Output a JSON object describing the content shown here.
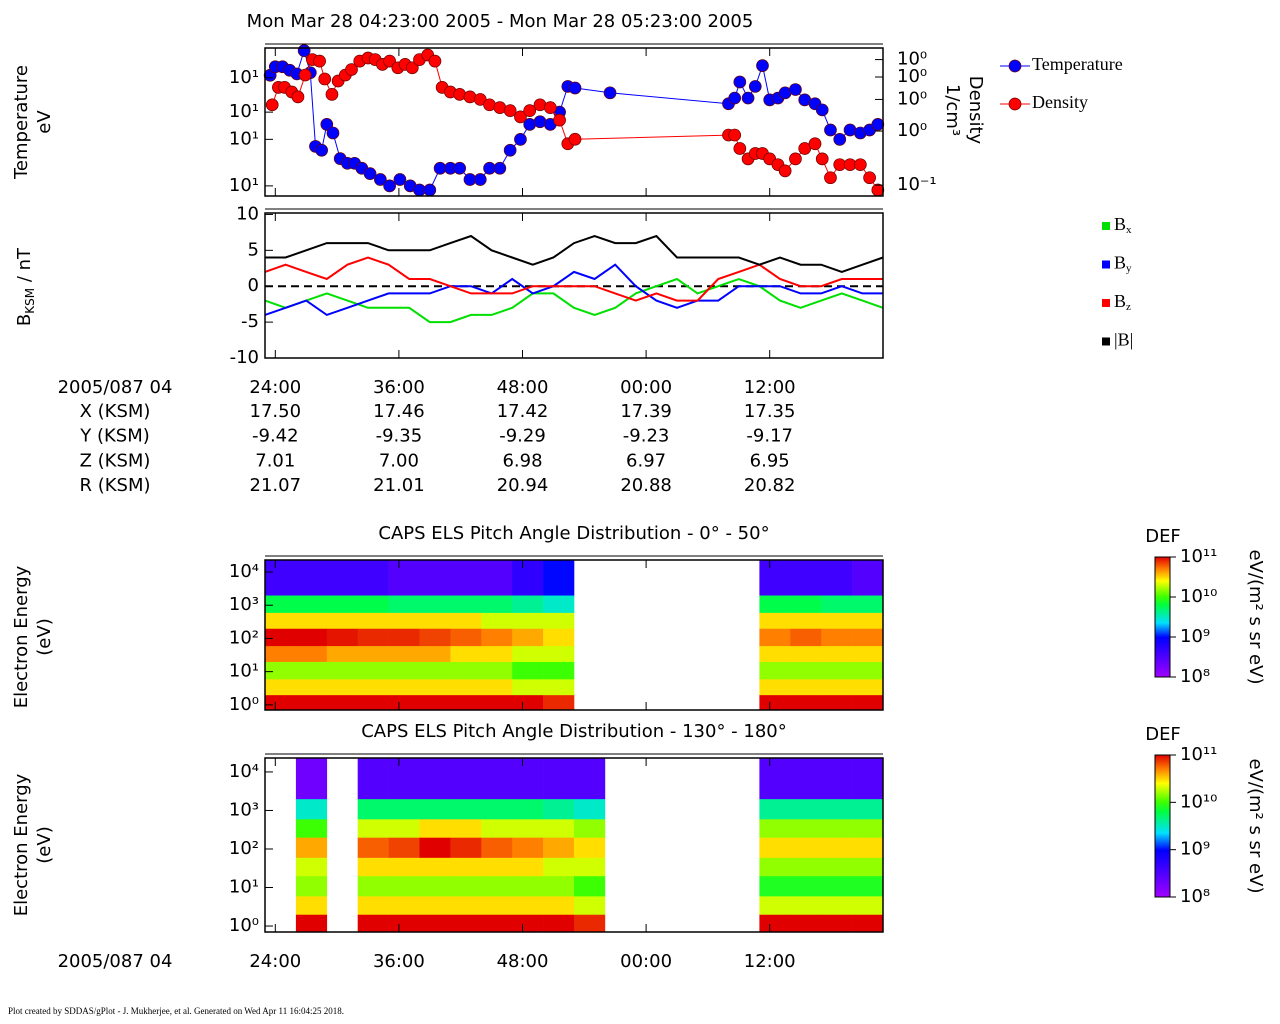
{
  "title": "Mon Mar 28 04:23:00 2005 - Mon Mar 28 05:23:00 2005",
  "footer": "Plot created by SDDAS/gPlot - J. Mukherjee, et al.  Generated on Wed Apr 11 16:04:25 2018.",
  "chart_data": [
    {
      "type": "line",
      "ylabel": [
        "Temperature",
        "eV"
      ],
      "y2label": [
        "Density",
        "1/cm³"
      ],
      "xlim": [
        23,
        83
      ],
      "xticks": [
        24,
        36,
        48,
        60,
        72
      ],
      "ylog": true,
      "ylim": [
        8.6,
        78
      ],
      "yticks": [
        {
          "value": 50,
          "label": "10¹"
        },
        {
          "value": 30,
          "label": "10¹"
        },
        {
          "value": 20,
          "label": "10¹"
        },
        {
          "value": 10,
          "label": "10¹"
        }
      ],
      "y2log": true,
      "y2lim": [
        0.087,
        0.58
      ],
      "y2ticks": [
        {
          "value": 0.5,
          "label": "10⁰"
        },
        {
          "value": 0.4,
          "label": "10⁰"
        },
        {
          "value": 0.3,
          "label": "10⁰"
        },
        {
          "value": 0.2,
          "label": "10⁰"
        },
        {
          "value": 0.1,
          "label": "10⁻¹"
        }
      ],
      "legend": "outside right",
      "marker": "circle",
      "series": [
        {
          "name": "Temperature",
          "color": "#0000ff",
          "axis": "y",
          "x": [
            23.5,
            24.0,
            24.7,
            25.4,
            26.1,
            26.8,
            27.4,
            27.9,
            28.5,
            29.0,
            29.6,
            30.3,
            31.0,
            31.7,
            32.4,
            33.2,
            34.2,
            35.1,
            36.1,
            37.1,
            38.0,
            39.0,
            40.0,
            41.0,
            41.9,
            42.9,
            43.9,
            44.8,
            45.8,
            46.8,
            47.8,
            48.7,
            49.7,
            50.7,
            51.6,
            52.4,
            53.1,
            56.5,
            68.0,
            68.6,
            69.1,
            69.9,
            70.6,
            71.3,
            72.0,
            72.8,
            73.5,
            74.5,
            75.4,
            76.4,
            77.1,
            77.9,
            78.8,
            79.8,
            80.8,
            81.7,
            82.5
          ],
          "values": [
            52,
            59,
            59,
            56,
            53,
            75,
            54,
            18,
            17,
            25,
            22,
            15,
            14,
            14,
            13,
            12,
            11,
            10,
            11,
            10,
            9.4,
            9.4,
            13,
            13,
            13,
            11,
            11,
            13,
            13,
            17,
            20,
            25,
            26,
            25,
            30,
            44,
            43,
            40,
            34,
            37,
            47,
            37,
            44,
            60,
            36,
            37,
            40,
            42,
            36,
            34,
            31,
            23,
            20,
            23,
            22,
            23,
            25
          ]
        },
        {
          "name": "Density",
          "color": "#ff0000",
          "axis": "y2",
          "x": [
            23.7,
            24.3,
            24.9,
            25.6,
            26.2,
            26.9,
            27.6,
            28.3,
            28.8,
            29.5,
            30.1,
            30.8,
            31.4,
            32.2,
            33.0,
            33.7,
            34.4,
            35.1,
            35.9,
            36.6,
            37.3,
            38.0,
            38.8,
            39.5,
            40.2,
            41.0,
            41.9,
            42.9,
            43.9,
            44.8,
            45.8,
            46.8,
            47.8,
            48.7,
            49.7,
            50.7,
            51.6,
            52.4,
            53.1,
            68.0,
            68.6,
            69.1,
            69.9,
            70.6,
            71.3,
            72.0,
            72.8,
            73.5,
            74.5,
            75.4,
            76.4,
            77.1,
            77.9,
            78.8,
            79.8,
            80.8,
            81.7,
            82.5
          ],
          "values": [
            0.28,
            0.35,
            0.35,
            0.33,
            0.31,
            0.41,
            0.5,
            0.49,
            0.39,
            0.32,
            0.38,
            0.41,
            0.44,
            0.49,
            0.51,
            0.5,
            0.47,
            0.49,
            0.45,
            0.47,
            0.45,
            0.5,
            0.53,
            0.49,
            0.35,
            0.33,
            0.32,
            0.31,
            0.3,
            0.28,
            0.27,
            0.26,
            0.24,
            0.26,
            0.28,
            0.27,
            0.23,
            0.17,
            0.18,
            0.19,
            0.19,
            0.16,
            0.14,
            0.15,
            0.15,
            0.14,
            0.13,
            0.12,
            0.14,
            0.16,
            0.17,
            0.14,
            0.11,
            0.13,
            0.13,
            0.13,
            0.11,
            0.094
          ]
        }
      ]
    },
    {
      "type": "line",
      "ylabel": {
        "text": "B",
        "sub": "KSM",
        "suffix": " / nT"
      },
      "xlim": [
        23,
        83
      ],
      "xticks": [
        {
          "value": 24,
          "label": "24:00"
        },
        {
          "value": 36,
          "label": "36:00"
        },
        {
          "value": 48,
          "label": "48:00"
        },
        {
          "value": 60,
          "label": "00:00"
        },
        {
          "value": 72,
          "label": "12:00"
        }
      ],
      "ylim": [
        -10,
        10.2
      ],
      "yticks": [
        10,
        5,
        0,
        -5,
        -10
      ],
      "reference_line": 0,
      "legend": "outside right",
      "x": [
        23,
        25,
        27,
        29,
        31,
        33,
        35,
        37,
        39,
        41,
        43,
        45,
        47,
        49,
        51,
        53,
        55,
        57,
        59,
        61,
        63,
        65,
        67,
        69,
        71,
        73,
        75,
        77,
        79,
        81,
        83
      ],
      "series": [
        {
          "name": "B",
          "sub": "x",
          "color": "#00e000",
          "values": [
            -2,
            -3,
            -2,
            -1,
            -2,
            -3,
            -3,
            -3,
            -5,
            -5,
            -4,
            -4,
            -3,
            -1,
            -1,
            -3,
            -4,
            -3,
            -1,
            0,
            1,
            -1,
            0,
            1,
            0,
            -2,
            -3,
            -2,
            -1,
            -2,
            -3
          ]
        },
        {
          "name": "B",
          "sub": "y",
          "color": "#0000ff",
          "values": [
            -4,
            -3,
            -2,
            -4,
            -3,
            -2,
            -1,
            -1,
            -1,
            0,
            0,
            -1,
            1,
            -1,
            0,
            2,
            1,
            3,
            0,
            -2,
            -3,
            -2,
            -2,
            0,
            0,
            0,
            -1,
            -1,
            0,
            -1,
            -1
          ]
        },
        {
          "name": "B",
          "sub": "z",
          "color": "#ff0000",
          "values": [
            2,
            3,
            2,
            1,
            3,
            4,
            3,
            1,
            1,
            0,
            -1,
            -1,
            -1,
            0,
            0,
            0,
            0,
            -1,
            -2,
            -1,
            -2,
            -2,
            1,
            2,
            3,
            1,
            0,
            0,
            1,
            1,
            1
          ]
        },
        {
          "name": "|B|",
          "color": "#000000",
          "values": [
            4,
            4,
            5,
            6,
            6,
            6,
            5,
            5,
            5,
            6,
            7,
            5,
            4,
            3,
            4,
            6,
            7,
            6,
            6,
            7,
            4,
            4,
            4,
            4,
            3,
            4,
            3,
            3,
            2,
            3,
            4
          ]
        }
      ]
    },
    {
      "type": "heatmap",
      "title": "CAPS ELS Pitch Angle Distribution - 0° - 50°",
      "ylabel": [
        "Electron Energy",
        "(eV)"
      ],
      "xlim": [
        23,
        83
      ],
      "xticks": [
        24,
        36,
        48,
        60,
        72
      ],
      "ylog": true,
      "ylim": [
        0.7,
        23000
      ],
      "yticks": [
        {
          "value": 10000,
          "label": "10⁴"
        },
        {
          "value": 1000,
          "label": "10³"
        },
        {
          "value": 100,
          "label": "10²"
        },
        {
          "value": 10,
          "label": "10¹"
        },
        {
          "value": 1,
          "label": "10⁰"
        }
      ],
      "colorbar_label": "DEF",
      "colorbar_unit": "eV/(m² s sr eV)",
      "clog": true,
      "clim": [
        100000000.0,
        100000000000.0
      ],
      "cticks": [
        {
          "value": 100000000000.0,
          "label": "10¹¹"
        },
        {
          "value": 10000000000.0,
          "label": "10¹⁰"
        },
        {
          "value": 1000000000.0,
          "label": "10⁹"
        },
        {
          "value": 100000000.0,
          "label": "10⁸"
        }
      ],
      "xbins": [
        23,
        26,
        29,
        32,
        35,
        38,
        41,
        44,
        47,
        50,
        53,
        56,
        59,
        62,
        65,
        68,
        71,
        74,
        77,
        80,
        83
      ],
      "ybins": [
        0.7,
        2,
        6,
        20,
        60,
        200,
        600,
        2000,
        23000
      ],
      "z": [
        [
          100000000000.0,
          30000000000.0,
          15000000000.0,
          50000000000.0,
          100000000000.0,
          30000000000.0,
          6000000000.0,
          400000000.0
        ],
        [
          100000000000.0,
          30000000000.0,
          15000000000.0,
          50000000000.0,
          100000000000.0,
          30000000000.0,
          6000000000.0,
          400000000.0
        ],
        [
          100000000000.0,
          30000000000.0,
          15000000000.0,
          40000000000.0,
          90000000000.0,
          30000000000.0,
          6000000000.0,
          400000000.0
        ],
        [
          100000000000.0,
          30000000000.0,
          15000000000.0,
          40000000000.0,
          80000000000.0,
          30000000000.0,
          6000000000.0,
          400000000.0
        ],
        [
          100000000000.0,
          30000000000.0,
          15000000000.0,
          40000000000.0,
          80000000000.0,
          30000000000.0,
          5000000000.0,
          300000000.0
        ],
        [
          100000000000.0,
          30000000000.0,
          15000000000.0,
          40000000000.0,
          70000000000.0,
          30000000000.0,
          5000000000.0,
          300000000.0
        ],
        [
          100000000000.0,
          30000000000.0,
          15000000000.0,
          30000000000.0,
          60000000000.0,
          30000000000.0,
          5000000000.0,
          300000000.0
        ],
        [
          100000000000.0,
          30000000000.0,
          15000000000.0,
          30000000000.0,
          50000000000.0,
          20000000000.0,
          5000000000.0,
          300000000.0
        ],
        [
          100000000000.0,
          20000000000.0,
          10000000000.0,
          20000000000.0,
          40000000000.0,
          20000000000.0,
          4000000000.0,
          500000000.0
        ],
        [
          80000000000.0,
          20000000000.0,
          10000000000.0,
          20000000000.0,
          30000000000.0,
          20000000000.0,
          3000000000.0,
          1000000000.0
        ],
        null,
        null,
        null,
        null,
        null,
        null,
        [
          100000000000.0,
          30000000000.0,
          15000000000.0,
          30000000000.0,
          50000000000.0,
          30000000000.0,
          6000000000.0,
          400000000.0
        ],
        [
          100000000000.0,
          30000000000.0,
          15000000000.0,
          30000000000.0,
          60000000000.0,
          30000000000.0,
          6000000000.0,
          400000000.0
        ],
        [
          100000000000.0,
          30000000000.0,
          15000000000.0,
          30000000000.0,
          50000000000.0,
          30000000000.0,
          5000000000.0,
          400000000.0
        ],
        [
          100000000000.0,
          30000000000.0,
          15000000000.0,
          30000000000.0,
          50000000000.0,
          30000000000.0,
          5000000000.0,
          300000000.0
        ]
      ]
    },
    {
      "type": "heatmap",
      "title": "CAPS ELS Pitch Angle Distribution - 130° - 180°",
      "ylabel": [
        "Electron Energy",
        "(eV)"
      ],
      "xlabel": "2005/087 04",
      "xlim": [
        23,
        83
      ],
      "xticks": [
        {
          "value": 24,
          "label": "24:00"
        },
        {
          "value": 36,
          "label": "36:00"
        },
        {
          "value": 48,
          "label": "48:00"
        },
        {
          "value": 60,
          "label": "00:00"
        },
        {
          "value": 72,
          "label": "12:00"
        }
      ],
      "ylog": true,
      "ylim": [
        0.7,
        23000
      ],
      "yticks": [
        {
          "value": 10000,
          "label": "10⁴"
        },
        {
          "value": 1000,
          "label": "10³"
        },
        {
          "value": 100,
          "label": "10²"
        },
        {
          "value": 10,
          "label": "10¹"
        },
        {
          "value": 1,
          "label": "10⁰"
        }
      ],
      "colorbar_label": "DEF",
      "colorbar_unit": "eV/(m² s sr eV)",
      "clog": true,
      "clim": [
        100000000.0,
        100000000000.0
      ],
      "cticks": [
        {
          "value": 100000000000.0,
          "label": "10¹¹"
        },
        {
          "value": 10000000000.0,
          "label": "10¹⁰"
        },
        {
          "value": 1000000000.0,
          "label": "10⁹"
        },
        {
          "value": 100000000.0,
          "label": "10⁸"
        }
      ],
      "xbins": [
        23,
        26,
        29,
        32,
        35,
        38,
        41,
        44,
        47,
        50,
        53,
        56,
        59,
        62,
        65,
        68,
        71,
        74,
        77,
        80,
        83
      ],
      "ybins": [
        0.7,
        2,
        6,
        20,
        60,
        200,
        600,
        2000,
        23000
      ],
      "z": [
        null,
        [
          100000000000.0,
          30000000000.0,
          15000000000.0,
          20000000000.0,
          40000000000.0,
          10000000000.0,
          3000000000.0,
          200000000.0
        ],
        null,
        [
          100000000000.0,
          30000000000.0,
          15000000000.0,
          30000000000.0,
          60000000000.0,
          20000000000.0,
          5000000000.0,
          300000000.0
        ],
        [
          100000000000.0,
          30000000000.0,
          15000000000.0,
          30000000000.0,
          70000000000.0,
          20000000000.0,
          5000000000.0,
          300000000.0
        ],
        [
          100000000000.0,
          30000000000.0,
          15000000000.0,
          30000000000.0,
          100000000000.0,
          30000000000.0,
          5000000000.0,
          300000000.0
        ],
        [
          100000000000.0,
          30000000000.0,
          15000000000.0,
          30000000000.0,
          80000000000.0,
          30000000000.0,
          5000000000.0,
          300000000.0
        ],
        [
          100000000000.0,
          30000000000.0,
          15000000000.0,
          30000000000.0,
          60000000000.0,
          20000000000.0,
          5000000000.0,
          300000000.0
        ],
        [
          100000000000.0,
          30000000000.0,
          15000000000.0,
          30000000000.0,
          50000000000.0,
          20000000000.0,
          5000000000.0,
          300000000.0
        ],
        [
          100000000000.0,
          30000000000.0,
          15000000000.0,
          20000000000.0,
          40000000000.0,
          20000000000.0,
          4000000000.0,
          300000000.0
        ],
        [
          80000000000.0,
          20000000000.0,
          10000000000.0,
          20000000000.0,
          30000000000.0,
          15000000000.0,
          3000000000.0,
          300000000.0
        ],
        null,
        null,
        null,
        null,
        null,
        [
          100000000000.0,
          20000000000.0,
          8000000000.0,
          15000000000.0,
          30000000000.0,
          15000000000.0,
          4000000000.0,
          300000000.0
        ],
        [
          100000000000.0,
          20000000000.0,
          8000000000.0,
          15000000000.0,
          30000000000.0,
          15000000000.0,
          4000000000.0,
          300000000.0
        ],
        [
          100000000000.0,
          20000000000.0,
          8000000000.0,
          15000000000.0,
          30000000000.0,
          15000000000.0,
          4000000000.0,
          300000000.0
        ],
        [
          100000000000.0,
          20000000000.0,
          8000000000.0,
          15000000000.0,
          30000000000.0,
          15000000000.0,
          4000000000.0,
          300000000.0
        ]
      ]
    }
  ],
  "ephemeris": {
    "time_label": "2005/087 04",
    "rows": [
      {
        "label": "X (KSM)",
        "values": [
          "17.50",
          "17.46",
          "17.42",
          "17.39",
          "17.35"
        ]
      },
      {
        "label": "Y (KSM)",
        "values": [
          "-9.42",
          "-9.35",
          "-9.29",
          "-9.23",
          "-9.17"
        ]
      },
      {
        "label": "Z (KSM)",
        "values": [
          "7.01",
          "7.00",
          "6.98",
          "6.97",
          "6.95"
        ]
      },
      {
        "label": "R (KSM)",
        "values": [
          "21.07",
          "21.01",
          "20.94",
          "20.88",
          "20.82"
        ]
      }
    ]
  }
}
